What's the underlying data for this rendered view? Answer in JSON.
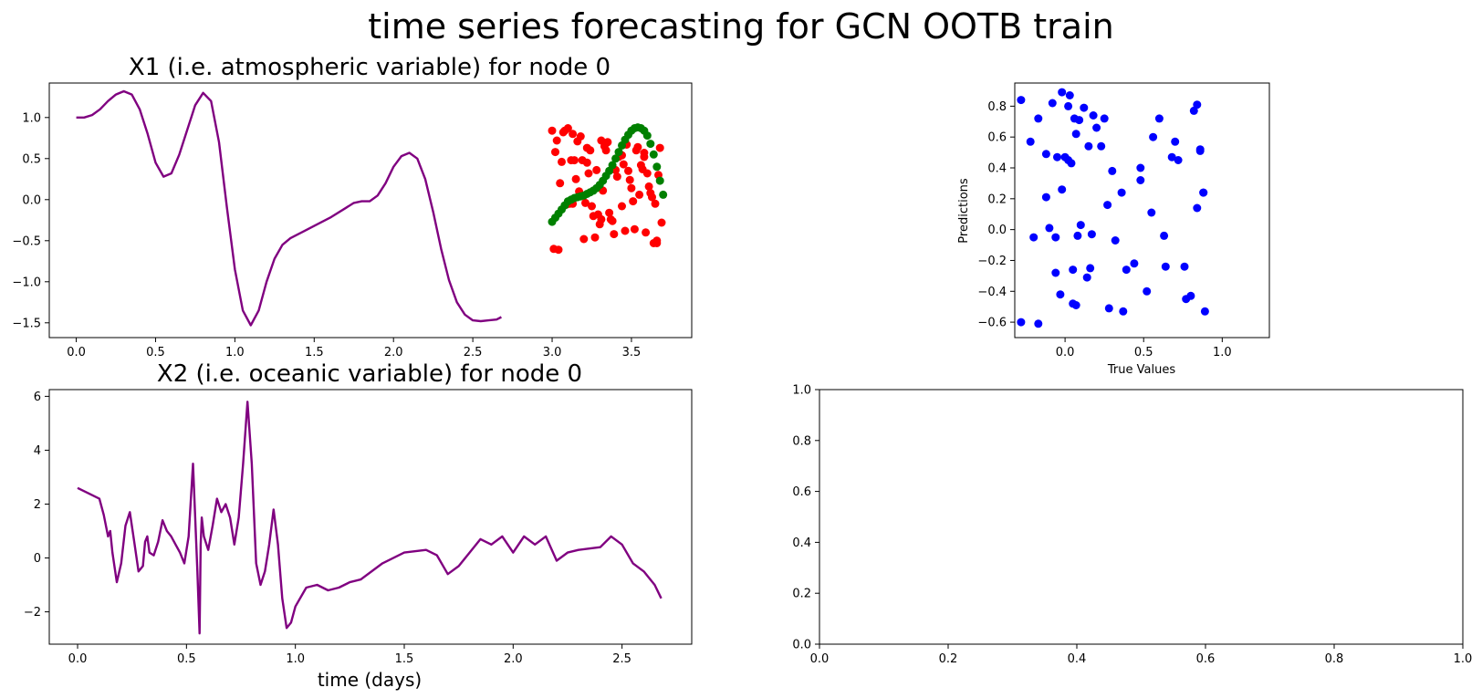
{
  "figure": {
    "suptitle": "time series forecasting for GCN OOTB train"
  },
  "colors": {
    "series_line": "#800080",
    "red_points": "#ff0000",
    "green_points": "#008000",
    "blue_points": "#0000ff"
  },
  "chart_data": [
    {
      "panel": "top-left",
      "type": "line",
      "title": "X1 (i.e. atmospheric variable) for node 0",
      "xlabel": "",
      "ylabel": "",
      "xlim": [
        -0.17,
        3.88
      ],
      "ylim": [
        -1.68,
        1.42
      ],
      "xticks": [
        0.0,
        0.5,
        1.0,
        1.5,
        2.0,
        2.5,
        3.0,
        3.5
      ],
      "xtick_labels": [
        "0.0",
        "0.5",
        "1.0",
        "1.5",
        "2.0",
        "2.5",
        "3.0",
        "3.5"
      ],
      "yticks": [
        1.0,
        0.5,
        0.0,
        -0.5,
        -1.0,
        -1.5
      ],
      "ytick_labels": [
        "1.0",
        "0.5",
        "0.0",
        "−0.5",
        "−1.0",
        "−1.5"
      ],
      "grid": false,
      "series": [
        {
          "kind": "line",
          "color": "#800080",
          "x": [
            0.0,
            0.05,
            0.1,
            0.15,
            0.2,
            0.25,
            0.3,
            0.35,
            0.4,
            0.45,
            0.5,
            0.55,
            0.6,
            0.65,
            0.7,
            0.75,
            0.8,
            0.85,
            0.9,
            0.95,
            1.0,
            1.05,
            1.1,
            1.15,
            1.2,
            1.25,
            1.3,
            1.35,
            1.4,
            1.5,
            1.6,
            1.7,
            1.75,
            1.8,
            1.85,
            1.9,
            1.95,
            2.0,
            2.05,
            2.1,
            2.15,
            2.2,
            2.25,
            2.3,
            2.35,
            2.4,
            2.45,
            2.5,
            2.55,
            2.6,
            2.65,
            2.68
          ],
          "y": [
            1.0,
            1.0,
            1.03,
            1.1,
            1.2,
            1.28,
            1.32,
            1.28,
            1.1,
            0.8,
            0.45,
            0.28,
            0.32,
            0.55,
            0.85,
            1.15,
            1.3,
            1.2,
            0.7,
            -0.1,
            -0.85,
            -1.35,
            -1.53,
            -1.35,
            -1.0,
            -0.72,
            -0.55,
            -0.47,
            -0.42,
            -0.32,
            -0.22,
            -0.1,
            -0.04,
            -0.02,
            -0.02,
            0.05,
            0.2,
            0.4,
            0.53,
            0.57,
            0.5,
            0.25,
            -0.15,
            -0.6,
            -0.98,
            -1.25,
            -1.4,
            -1.47,
            -1.48,
            -1.47,
            -1.46,
            -1.43
          ]
        },
        {
          "kind": "scatter",
          "color": "#ff0000",
          "x": [
            3.0,
            3.03,
            3.07,
            3.1,
            3.13,
            3.16,
            3.19,
            3.22,
            3.25,
            3.28,
            3.31,
            3.34,
            3.37,
            3.4,
            3.43,
            3.46,
            3.49,
            3.52,
            3.55,
            3.58,
            3.61,
            3.64,
            3.67,
            3.69,
            3.02,
            3.05,
            3.09,
            3.12,
            3.15,
            3.18,
            3.21,
            3.24,
            3.27,
            3.3,
            3.33,
            3.36,
            3.39,
            3.42,
            3.45,
            3.48,
            3.51,
            3.54,
            3.57,
            3.6,
            3.63,
            3.66,
            3.04,
            3.08,
            3.11,
            3.14,
            3.17,
            3.2,
            3.23,
            3.26,
            3.29,
            3.32,
            3.35,
            3.38,
            3.41,
            3.44,
            3.47,
            3.5,
            3.53,
            3.56,
            3.59,
            3.62,
            3.65,
            3.68,
            3.01,
            3.06,
            3.13,
            3.22,
            3.31,
            3.44,
            3.58,
            3.66
          ],
          "y": [
            0.84,
            0.72,
            0.82,
            0.87,
            0.8,
            0.71,
            0.48,
            0.63,
            -0.08,
            0.36,
            0.72,
            0.6,
            -0.24,
            0.36,
            0.55,
            -0.38,
            0.24,
            -0.36,
            0.06,
            0.52,
            0.16,
            -0.53,
            0.3,
            -0.28,
            0.58,
            0.2,
            -0.06,
            0.48,
            0.25,
            0.77,
            -0.04,
            0.6,
            -0.46,
            -0.3,
            0.65,
            -0.16,
            -0.42,
            0.52,
            0.43,
            0.35,
            -0.02,
            0.64,
            0.37,
            0.32,
            0.03,
            -0.5,
            -0.61,
            0.84,
            -0.05,
            0.48,
            0.1,
            -0.48,
            0.32,
            -0.2,
            -0.18,
            0.11,
            0.7,
            -0.26,
            0.28,
            -0.08,
            0.67,
            0.14,
            0.6,
            0.42,
            -0.4,
            0.08,
            -0.05,
            0.63,
            -0.6,
            0.46,
            -0.05,
            0.45,
            -0.24,
            0.54,
            0.57,
            -0.53
          ]
        },
        {
          "kind": "scatter",
          "color": "#008000",
          "x": [
            3.0,
            3.02,
            3.04,
            3.06,
            3.08,
            3.1,
            3.12,
            3.14,
            3.16,
            3.18,
            3.2,
            3.22,
            3.24,
            3.26,
            3.28,
            3.3,
            3.32,
            3.34,
            3.36,
            3.38,
            3.4,
            3.42,
            3.44,
            3.46,
            3.48,
            3.5,
            3.52,
            3.54,
            3.56,
            3.58,
            3.6,
            3.62,
            3.64,
            3.66,
            3.68,
            3.7
          ],
          "y": [
            -0.27,
            -0.22,
            -0.17,
            -0.12,
            -0.07,
            -0.02,
            0.0,
            0.02,
            0.03,
            0.04,
            0.05,
            0.07,
            0.09,
            0.11,
            0.14,
            0.18,
            0.23,
            0.29,
            0.35,
            0.42,
            0.5,
            0.58,
            0.66,
            0.73,
            0.79,
            0.84,
            0.87,
            0.88,
            0.87,
            0.84,
            0.78,
            0.68,
            0.55,
            0.4,
            0.23,
            0.06
          ]
        }
      ]
    },
    {
      "panel": "top-right",
      "type": "scatter",
      "title": "",
      "xlabel": "True Values",
      "ylabel": "Predictions",
      "xlim": [
        -0.32,
        1.3
      ],
      "ylim": [
        -0.7,
        0.95
      ],
      "xticks": [
        0.0,
        0.5,
        1.0
      ],
      "xtick_labels": [
        "0.0",
        "0.5",
        "1.0"
      ],
      "yticks": [
        0.8,
        0.6,
        0.4,
        0.2,
        0.0,
        -0.2,
        -0.4,
        -0.6
      ],
      "ytick_labels": [
        "0.8",
        "0.6",
        "0.4",
        "0.2",
        "0.0",
        "−0.2",
        "−0.4",
        "−0.6"
      ],
      "grid": false,
      "series": [
        {
          "kind": "scatter",
          "color": "#0000ff",
          "x": [
            -0.28,
            -0.22,
            -0.17,
            -0.08,
            -0.02,
            0.03,
            0.06,
            0.12,
            0.18,
            0.25,
            0.02,
            0.09,
            0.2,
            0.56,
            0.6,
            0.7,
            0.84,
            0.82,
            0.86,
            -0.12,
            0.0,
            0.04,
            0.15,
            0.23,
            -0.05,
            0.02,
            0.07,
            0.3,
            0.48,
            0.48,
            0.68,
            0.72,
            0.86,
            0.88,
            -0.12,
            -0.02,
            0.27,
            0.36,
            0.55,
            0.84,
            0.88,
            -0.1,
            -0.2,
            0.1,
            0.17,
            0.32,
            0.63,
            -0.06,
            0.08,
            0.05,
            0.44,
            0.39,
            0.16,
            0.14,
            0.64,
            0.76,
            -0.06,
            0.05,
            0.28,
            0.52,
            0.8,
            0.77,
            0.89,
            -0.03,
            0.07,
            0.37,
            -0.28,
            -0.17
          ],
          "y": [
            0.84,
            0.57,
            0.72,
            0.82,
            0.89,
            0.87,
            0.72,
            0.79,
            0.74,
            0.72,
            0.8,
            0.71,
            0.66,
            0.6,
            0.72,
            0.57,
            0.81,
            0.77,
            0.52,
            0.49,
            0.47,
            0.43,
            0.54,
            0.54,
            0.47,
            0.45,
            0.62,
            0.38,
            0.4,
            0.32,
            0.47,
            0.45,
            0.51,
            0.24,
            0.21,
            0.26,
            0.16,
            0.24,
            0.11,
            0.14,
            0.24,
            0.01,
            -0.05,
            0.03,
            -0.03,
            -0.07,
            -0.04,
            -0.05,
            -0.04,
            -0.26,
            -0.22,
            -0.26,
            -0.25,
            -0.31,
            -0.24,
            -0.24,
            -0.28,
            -0.48,
            -0.51,
            -0.4,
            -0.43,
            -0.45,
            -0.53,
            -0.42,
            -0.49,
            -0.53,
            -0.6,
            -0.61
          ]
        }
      ]
    },
    {
      "panel": "bottom-left",
      "type": "line",
      "title": "X2 (i.e. oceanic variable) for node 0",
      "xlabel": "time (days)",
      "ylabel": "",
      "xlim": [
        -0.13,
        2.82
      ],
      "ylim": [
        -3.2,
        6.25
      ],
      "xticks": [
        0.0,
        0.5,
        1.0,
        1.5,
        2.0,
        2.5
      ],
      "xtick_labels": [
        "0.0",
        "0.5",
        "1.0",
        "1.5",
        "2.0",
        "2.5"
      ],
      "yticks": [
        6,
        4,
        2,
        0,
        -2
      ],
      "ytick_labels": [
        "6",
        "4",
        "2",
        "0",
        "−2"
      ],
      "grid": false,
      "series": [
        {
          "kind": "line",
          "color": "#800080",
          "x": [
            0.0,
            0.05,
            0.1,
            0.12,
            0.14,
            0.15,
            0.16,
            0.18,
            0.2,
            0.22,
            0.24,
            0.26,
            0.28,
            0.3,
            0.31,
            0.32,
            0.33,
            0.35,
            0.37,
            0.39,
            0.41,
            0.43,
            0.45,
            0.47,
            0.49,
            0.51,
            0.53,
            0.54,
            0.55,
            0.56,
            0.565,
            0.57,
            0.58,
            0.6,
            0.62,
            0.64,
            0.66,
            0.68,
            0.7,
            0.72,
            0.74,
            0.76,
            0.78,
            0.8,
            0.82,
            0.84,
            0.86,
            0.88,
            0.9,
            0.92,
            0.94,
            0.96,
            0.98,
            1.0,
            1.05,
            1.1,
            1.15,
            1.2,
            1.25,
            1.3,
            1.4,
            1.5,
            1.6,
            1.65,
            1.7,
            1.75,
            1.8,
            1.85,
            1.9,
            1.95,
            2.0,
            2.05,
            2.1,
            2.15,
            2.2,
            2.25,
            2.3,
            2.35,
            2.4,
            2.45,
            2.5,
            2.55,
            2.6,
            2.65,
            2.68
          ],
          "y": [
            2.6,
            2.4,
            2.2,
            1.6,
            0.8,
            1.0,
            0.2,
            -0.9,
            -0.2,
            1.2,
            1.7,
            0.6,
            -0.5,
            -0.3,
            0.6,
            0.8,
            0.2,
            0.1,
            0.6,
            1.4,
            1.0,
            0.8,
            0.5,
            0.2,
            -0.2,
            0.8,
            3.5,
            1.5,
            -0.5,
            -2.8,
            0.5,
            1.5,
            0.8,
            0.3,
            1.2,
            2.2,
            1.7,
            2.0,
            1.5,
            0.5,
            1.5,
            3.5,
            5.8,
            3.5,
            -0.2,
            -1.0,
            -0.5,
            0.5,
            1.8,
            0.5,
            -1.5,
            -2.6,
            -2.4,
            -1.8,
            -1.1,
            -1.0,
            -1.2,
            -1.1,
            -0.9,
            -0.8,
            -0.2,
            0.2,
            0.3,
            0.1,
            -0.6,
            -0.3,
            0.2,
            0.7,
            0.5,
            0.8,
            0.2,
            0.8,
            0.5,
            0.8,
            -0.1,
            0.2,
            0.3,
            0.35,
            0.4,
            0.8,
            0.5,
            -0.2,
            -0.5,
            -1.0,
            -1.5
          ]
        }
      ]
    },
    {
      "panel": "bottom-right",
      "type": "line",
      "title": "",
      "xlabel": "",
      "ylabel": "",
      "xlim": [
        0.0,
        1.0
      ],
      "ylim": [
        0.0,
        1.0
      ],
      "xticks": [
        0.0,
        0.2,
        0.4,
        0.6,
        0.8,
        1.0
      ],
      "xtick_labels": [
        "0.0",
        "0.2",
        "0.4",
        "0.6",
        "0.8",
        "1.0"
      ],
      "yticks": [
        1.0,
        0.8,
        0.6,
        0.4,
        0.2,
        0.0
      ],
      "ytick_labels": [
        "1.0",
        "0.8",
        "0.6",
        "0.4",
        "0.2",
        "0.0"
      ],
      "grid": false,
      "series": []
    }
  ]
}
